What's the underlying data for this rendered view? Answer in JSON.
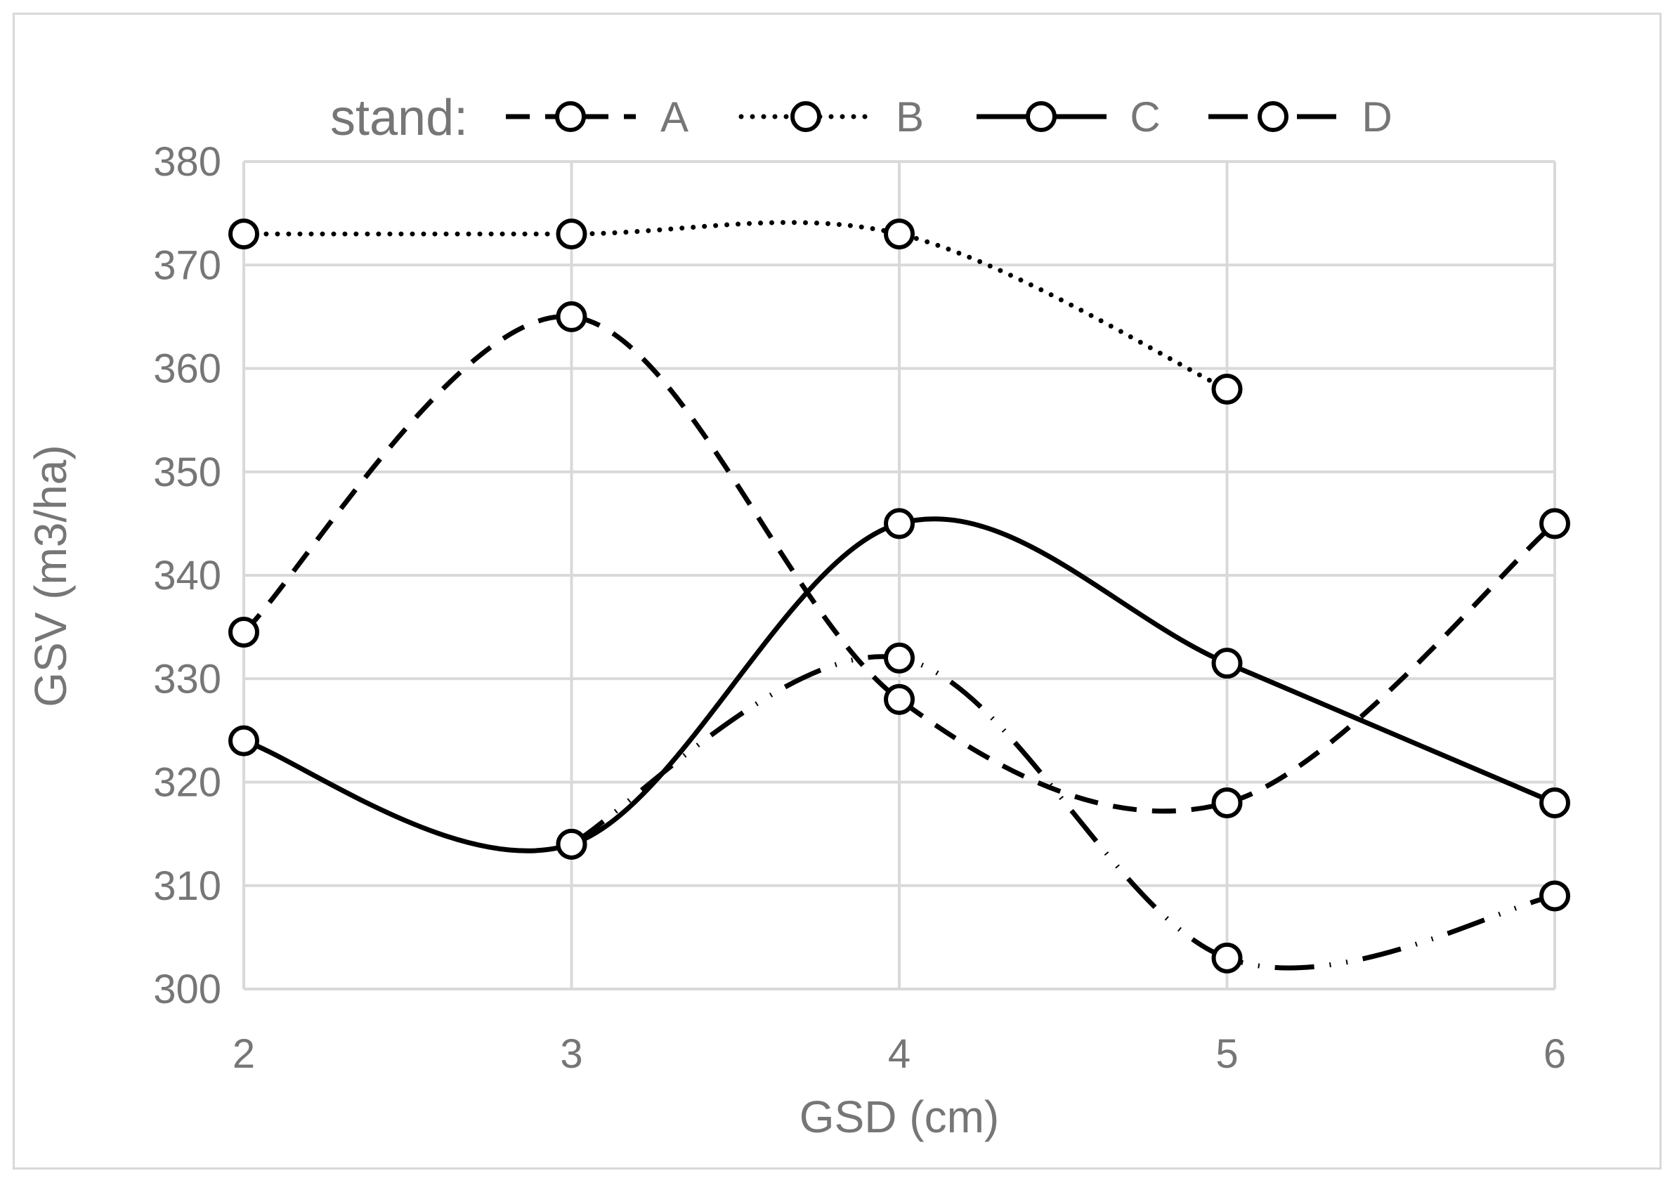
{
  "chart_data": {
    "type": "line",
    "xlabel": "GSD (cm)",
    "ylabel": "GSV (m3/ha)",
    "x": [
      2,
      3,
      4,
      5,
      6
    ],
    "x_tick_labels": [
      "2",
      "3",
      "4",
      "5",
      "6"
    ],
    "y_tick_labels": [
      "300",
      "310",
      "320",
      "330",
      "340",
      "350",
      "360",
      "370",
      "380"
    ],
    "xlim": [
      2,
      6
    ],
    "ylim": [
      300,
      380
    ],
    "grid": true,
    "smoothed": true,
    "legend": {
      "title": "stand:",
      "placement": "top"
    },
    "series": [
      {
        "name": "A",
        "style": "dashed",
        "values": [
          334.5,
          365,
          328,
          318,
          345
        ]
      },
      {
        "name": "B",
        "style": "dotted",
        "values": [
          373,
          373,
          373,
          358,
          null
        ]
      },
      {
        "name": "C",
        "style": "solid",
        "values": [
          324,
          314,
          345,
          331.5,
          318
        ]
      },
      {
        "name": "D",
        "style": "dashdot",
        "values": [
          null,
          314,
          332,
          303,
          309
        ]
      }
    ],
    "colors": {
      "line": "#000000",
      "grid": "#d9d9d9",
      "text": "#767676"
    }
  }
}
